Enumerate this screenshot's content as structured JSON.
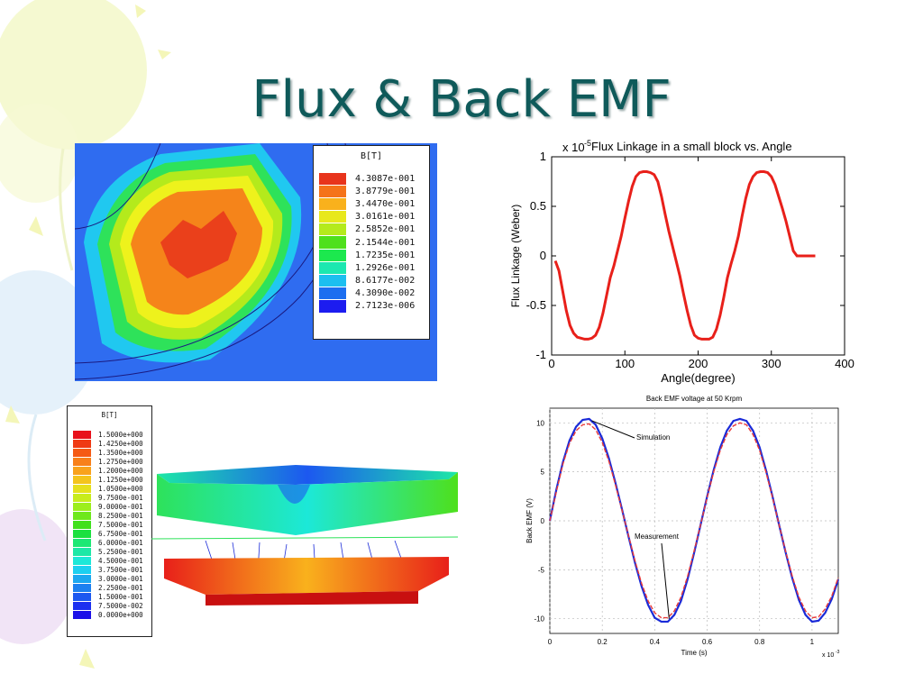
{
  "slide": {
    "title": "Flux & Back EMF",
    "colors": {
      "title": "#0f5a5a",
      "balloon_yellow": "#f3f7b8",
      "balloon_blue": "#d8ecf8",
      "balloon_purple": "#ecd9f3"
    }
  },
  "field_plot_2d": {
    "legend_title": "B[T]",
    "legend_values": [
      "4.3087e-001",
      "3.8779e-001",
      "3.4470e-001",
      "3.0161e-001",
      "2.5852e-001",
      "2.1544e-001",
      "1.7235e-001",
      "1.2926e-001",
      "8.6177e-002",
      "4.3090e-002",
      "2.7123e-006"
    ],
    "legend_colors": [
      "#e8341c",
      "#f5731a",
      "#f9b11c",
      "#e8e81c",
      "#b4ea1c",
      "#4ee01c",
      "#1ce84e",
      "#1ce8b0",
      "#1cbff0",
      "#1c6ef0",
      "#1c1cf0"
    ]
  },
  "field_plot_3d": {
    "legend_title": "B[T]",
    "legend_values": [
      "1.5000e+000",
      "1.4250e+000",
      "1.3500e+000",
      "1.2750e+000",
      "1.2000e+000",
      "1.1250e+000",
      "1.0500e+000",
      "9.7500e-001",
      "9.0000e-001",
      "8.2500e-001",
      "7.5000e-001",
      "6.7500e-001",
      "6.0000e-001",
      "5.2500e-001",
      "4.5000e-001",
      "3.7500e-001",
      "3.0000e-001",
      "2.2500e-001",
      "1.5000e-001",
      "7.5000e-002",
      "0.0000e+000"
    ],
    "legend_colors": [
      "#e8101a",
      "#ef3a14",
      "#f55a14",
      "#f8801a",
      "#f9a21c",
      "#f4c41c",
      "#e6e01c",
      "#c8ec1c",
      "#9cee1c",
      "#6ee81c",
      "#40e01c",
      "#1ce040",
      "#1ce874",
      "#1ce8a6",
      "#1ce8d8",
      "#1cd0f0",
      "#1ca8f0",
      "#1c80f0",
      "#1c58f0",
      "#1c30f0",
      "#1c10e8"
    ]
  },
  "chart_data": [
    {
      "type": "line",
      "title": "Flux Linkage in a small block vs. Angle",
      "xlabel": "Angle(degree)",
      "ylabel": "Flux Linkage (Weber)",
      "y_multiplier": "x 10",
      "y_multiplier_exp": "-5",
      "xlim": [
        0,
        400
      ],
      "ylim": [
        -1,
        1
      ],
      "xticks": [
        "0",
        "100",
        "200",
        "300",
        "400"
      ],
      "yticks": [
        "1",
        "0.5",
        "0",
        "-0.5",
        "-1"
      ],
      "grid": false,
      "series": [
        {
          "color": "#e8201a",
          "x": [
            5,
            10,
            15,
            20,
            25,
            30,
            35,
            40,
            45,
            50,
            55,
            60,
            65,
            70,
            75,
            80,
            85,
            90,
            95,
            100,
            105,
            110,
            115,
            120,
            125,
            130,
            135,
            140,
            145,
            150,
            155,
            160,
            165,
            170,
            175,
            180,
            185,
            190,
            195,
            200,
            205,
            210,
            215,
            220,
            225,
            230,
            235,
            240,
            245,
            250,
            255,
            260,
            265,
            270,
            275,
            280,
            285,
            290,
            295,
            300,
            305,
            310,
            315,
            320,
            325,
            330,
            335,
            340,
            345,
            350,
            355,
            360
          ],
          "y": [
            -0.05,
            -0.15,
            -0.35,
            -0.55,
            -0.7,
            -0.78,
            -0.82,
            -0.83,
            -0.84,
            -0.84,
            -0.83,
            -0.8,
            -0.72,
            -0.58,
            -0.4,
            -0.22,
            -0.1,
            0.05,
            0.2,
            0.38,
            0.55,
            0.7,
            0.8,
            0.84,
            0.85,
            0.85,
            0.84,
            0.82,
            0.75,
            0.6,
            0.42,
            0.25,
            0.1,
            -0.05,
            -0.2,
            -0.38,
            -0.55,
            -0.7,
            -0.8,
            -0.83,
            -0.84,
            -0.84,
            -0.84,
            -0.82,
            -0.74,
            -0.6,
            -0.42,
            -0.22,
            -0.08,
            0.05,
            0.2,
            0.4,
            0.58,
            0.72,
            0.8,
            0.84,
            0.85,
            0.85,
            0.84,
            0.8,
            0.72,
            0.6,
            0.48,
            0.35,
            0.2,
            0.05,
            0.0,
            0.0,
            0.0,
            0.0,
            0.0,
            0.0
          ]
        }
      ]
    },
    {
      "type": "line",
      "title": "Back EMF voltage at 50 Krpm",
      "xlabel": "Time (s)",
      "ylabel": "Back EMF (V)",
      "x_multiplier": "x 10",
      "x_multiplier_exp": "-3",
      "xlim": [
        0,
        1.1
      ],
      "ylim": [
        -11.5,
        11.5
      ],
      "xticks": [
        "0",
        "0.2",
        "0.4",
        "0.6",
        "0.8",
        "1"
      ],
      "yticks": [
        "10",
        "5",
        "0",
        "-5",
        "-10"
      ],
      "grid": true,
      "annotations": [
        "Simulation",
        "Measurement"
      ],
      "series": [
        {
          "color": "#1a2ad8",
          "x": [
            0,
            0.025,
            0.05,
            0.075,
            0.1,
            0.125,
            0.15,
            0.175,
            0.2,
            0.225,
            0.25,
            0.275,
            0.3,
            0.325,
            0.35,
            0.375,
            0.4,
            0.425,
            0.45,
            0.475,
            0.5,
            0.525,
            0.55,
            0.575,
            0.6,
            0.625,
            0.65,
            0.675,
            0.7,
            0.725,
            0.75,
            0.775,
            0.8,
            0.825,
            0.85,
            0.875,
            0.9,
            0.925,
            0.95,
            0.975,
            1.0,
            1.025,
            1.05,
            1.075,
            1.1
          ],
          "y": [
            0,
            3.2,
            6.0,
            8.2,
            9.6,
            10.3,
            10.4,
            9.8,
            8.4,
            6.4,
            3.9,
            1.2,
            -1.6,
            -4.3,
            -6.7,
            -8.6,
            -9.9,
            -10.3,
            -10.3,
            -9.6,
            -8.2,
            -6.0,
            -3.3,
            -0.4,
            2.5,
            5.2,
            7.5,
            9.2,
            10.2,
            10.4,
            10.2,
            9.2,
            7.5,
            5.1,
            2.4,
            -0.5,
            -3.3,
            -5.9,
            -8.1,
            -9.6,
            -10.3,
            -10.2,
            -9.4,
            -8.0,
            -6.0
          ]
        },
        {
          "color": "#e83a3a",
          "x": [
            0,
            0.025,
            0.05,
            0.075,
            0.1,
            0.125,
            0.15,
            0.175,
            0.2,
            0.225,
            0.25,
            0.275,
            0.3,
            0.325,
            0.35,
            0.375,
            0.4,
            0.425,
            0.45,
            0.475,
            0.5,
            0.525,
            0.55,
            0.575,
            0.6,
            0.625,
            0.65,
            0.675,
            0.7,
            0.725,
            0.75,
            0.775,
            0.8,
            0.825,
            0.85,
            0.875,
            0.9,
            0.925,
            0.95,
            0.975,
            1.0,
            1.025,
            1.05,
            1.075,
            1.1
          ],
          "y": [
            0,
            3.0,
            5.8,
            7.9,
            9.2,
            9.8,
            9.9,
            9.3,
            8.0,
            6.1,
            3.7,
            1.1,
            -1.5,
            -4.1,
            -6.4,
            -8.2,
            -9.4,
            -9.9,
            -9.9,
            -9.2,
            -7.8,
            -5.7,
            -3.1,
            -0.4,
            2.4,
            5.0,
            7.2,
            8.8,
            9.7,
            10.0,
            9.8,
            8.8,
            7.2,
            4.9,
            2.3,
            -0.5,
            -3.2,
            -5.7,
            -7.8,
            -9.2,
            -9.9,
            -9.8,
            -9.0,
            -7.7,
            -5.8
          ]
        }
      ]
    }
  ]
}
